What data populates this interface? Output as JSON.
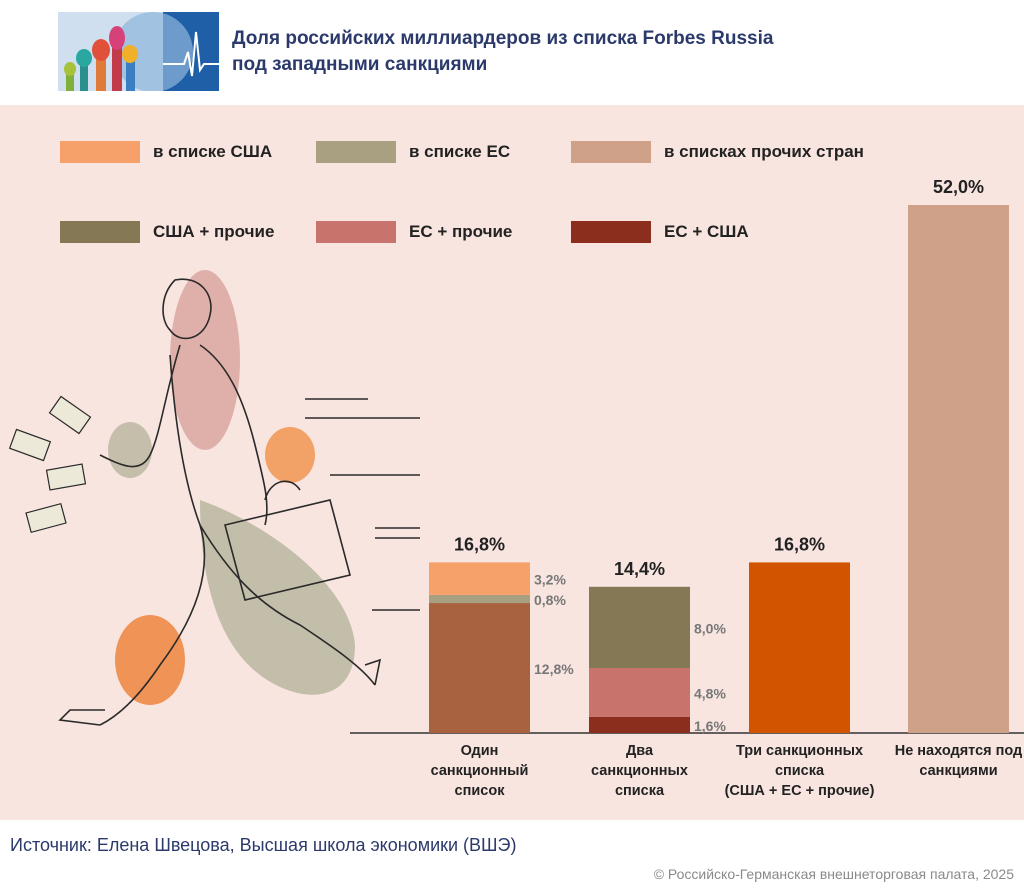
{
  "header": {
    "title_line1": "Доля российских миллиардеров из списка Forbes Russia",
    "title_line2": "под западными санкциями"
  },
  "legend": [
    {
      "label": "в списке США",
      "color": "#f6a06a"
    },
    {
      "label": "в списке ЕС",
      "color": "#a9a081"
    },
    {
      "label": "в списках прочих стран",
      "color": "#d0a189"
    },
    {
      "label": "США + прочие",
      "color": "#857855"
    },
    {
      "label": "ЕС + прочие",
      "color": "#c8736b"
    },
    {
      "label": "ЕС + США",
      "color": "#8c2e1e"
    }
  ],
  "chart_data": {
    "type": "bar",
    "stacked": true,
    "title": "Доля российских миллиардеров из списка Forbes Russia под западными санкциями",
    "ylim": [
      0,
      52
    ],
    "categories": [
      {
        "label_lines": [
          "Один",
          "санкционный",
          "список"
        ],
        "total_label": "16,8%",
        "total": 16.8
      },
      {
        "label_lines": [
          "Два",
          "санкционных",
          "списка"
        ],
        "total_label": "14,4%",
        "total": 14.4
      },
      {
        "label_lines": [
          "Три санкционных",
          "списка",
          "(США + ЕС + прочие)"
        ],
        "total_label": "16,8%",
        "total": 16.8
      },
      {
        "label_lines": [
          "Не находятся под",
          "санкциями"
        ],
        "total_label": "52,0%",
        "total": 52.0
      }
    ],
    "stacks": [
      [
        {
          "name": "в списках прочих стран",
          "value": 12.8,
          "label": "12,8%",
          "color": "#a8623f"
        },
        {
          "name": "в списке ЕС",
          "value": 0.8,
          "label": "0,8%",
          "color": "#a9a081"
        },
        {
          "name": "в списке США",
          "value": 3.2,
          "label": "3,2%",
          "color": "#f6a06a"
        }
      ],
      [
        {
          "name": "ЕС + США",
          "value": 1.6,
          "label": "1,6%",
          "color": "#8c2e1e"
        },
        {
          "name": "ЕС + прочие",
          "value": 4.8,
          "label": "4,8%",
          "color": "#c8736b"
        },
        {
          "name": "США + прочие",
          "value": 8.0,
          "label": "8,0%",
          "color": "#857855"
        }
      ],
      [
        {
          "name": "США + ЕС + прочие",
          "value": 16.8,
          "label": "",
          "color": "#d35400"
        }
      ],
      [
        {
          "name": "Не находятся под санкциями",
          "value": 52.0,
          "label": "",
          "color": "#d0a189"
        }
      ]
    ]
  },
  "footer": {
    "source": "Источник: Елена Швецова, Высшая школа экономики (ВШЭ)",
    "copyright": "© Российско-Германская внешнеторговая палата, 2025"
  }
}
